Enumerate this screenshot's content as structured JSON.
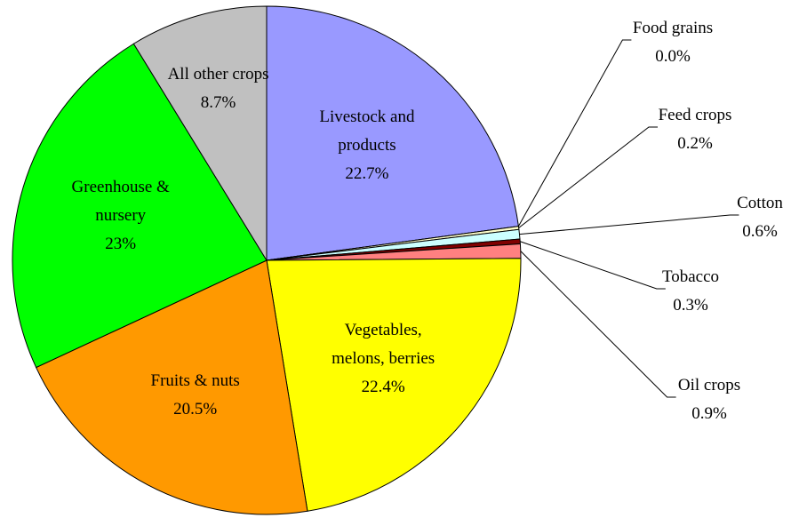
{
  "chart_data": {
    "type": "pie",
    "categories": [
      "Livestock and products",
      "Food grains",
      "Feed crops",
      "Cotton",
      "Tobacco",
      "Oil crops",
      "Vegetables, melons, berries",
      "Fruits & nuts",
      "Greenhouse & nursery",
      "All other crops"
    ],
    "values": [
      22.7,
      0.0,
      0.2,
      0.6,
      0.3,
      0.9,
      22.4,
      20.5,
      23,
      8.7
    ],
    "value_labels": [
      "22.7%",
      "0.0%",
      "0.2%",
      "0.6%",
      "0.3%",
      "0.9%",
      "22.4%",
      "20.5%",
      "23%",
      "8.7%"
    ],
    "colors": [
      "#9999ff",
      "#993366",
      "#ffffcc",
      "#ccffff",
      "#800000",
      "#ff8080",
      "#ffff00",
      "#ff9900",
      "#00ff00",
      "#c0c0c0"
    ]
  }
}
